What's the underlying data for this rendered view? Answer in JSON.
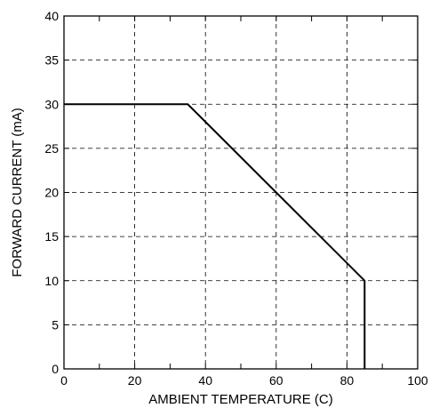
{
  "chart_data": {
    "type": "line",
    "title": "",
    "xlabel": "AMBIENT TEMPERATURE (C)",
    "ylabel": "FORWARD CURRENT (mA)",
    "xlim": [
      0,
      100
    ],
    "ylim": [
      0,
      40
    ],
    "xticks": [
      0,
      20,
      40,
      60,
      80,
      100
    ],
    "yticks": [
      0,
      5,
      10,
      15,
      20,
      25,
      30,
      35,
      40
    ],
    "grid": true,
    "grid_style": "dashed",
    "legend": "none",
    "series": [
      {
        "x": [
          0,
          35,
          85,
          85
        ],
        "y": [
          30,
          30,
          10,
          0
        ],
        "color": "#000000"
      }
    ]
  }
}
